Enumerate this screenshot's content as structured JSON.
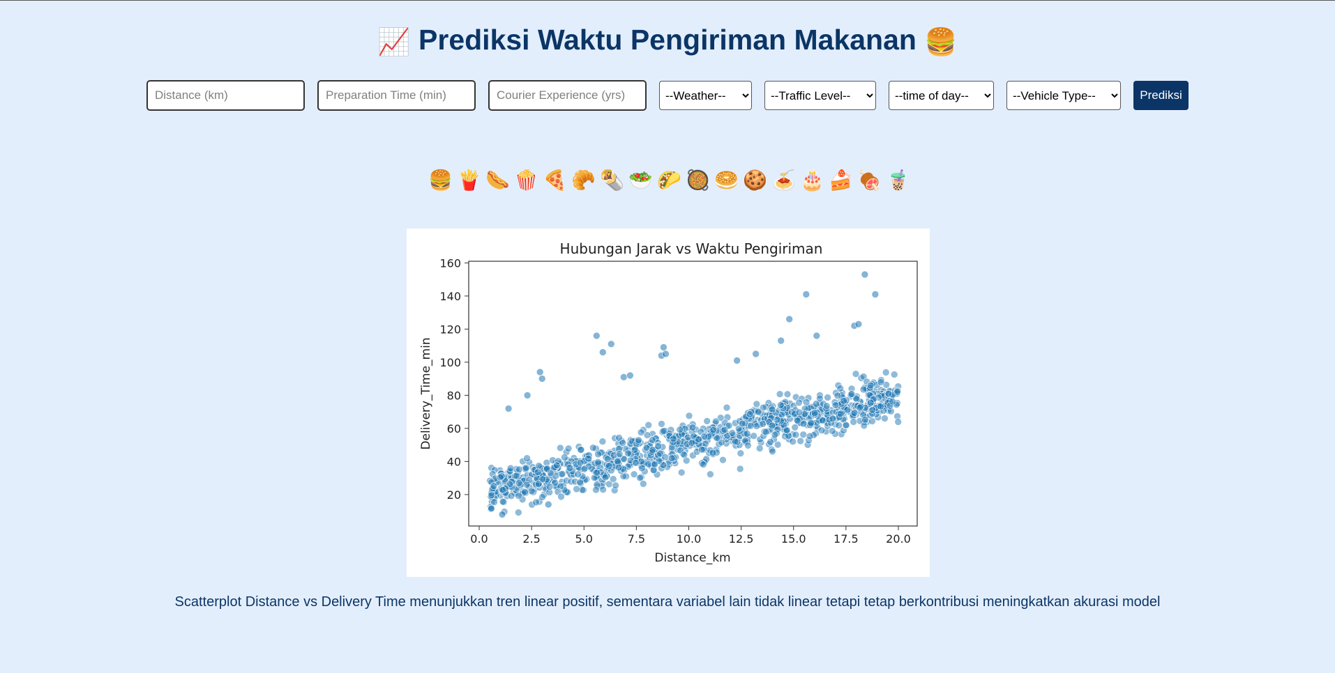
{
  "header": {
    "title": "Prediksi Waktu Pengiriman Makanan",
    "icon_left": "📈",
    "icon_right": "🍔"
  },
  "form": {
    "distance_placeholder": "Distance (km)",
    "prep_placeholder": "Preparation Time (min)",
    "courier_placeholder": "Courier Experience (yrs)",
    "weather_selected": "--Weather--",
    "traffic_selected": "--Traffic Level--",
    "time_selected": "--time of day--",
    "vehicle_selected": "--Vehicle Type--",
    "submit_label": "Prediksi"
  },
  "food_icons": [
    "🍔",
    "🍟",
    "🌭",
    "🍿",
    "🍕",
    "🥐",
    "🌯",
    "🥗",
    "🌮",
    "🥘",
    "🥯",
    "🍪",
    "🍝",
    "🎂",
    "🍰",
    "🍖",
    "🧋"
  ],
  "chart_data": {
    "type": "scatter",
    "title": "Hubungan Jarak vs Waktu Pengiriman",
    "xlabel": "Distance_km",
    "ylabel": "Delivery_Time_min",
    "xlim": [
      -0.5,
      20.9
    ],
    "ylim": [
      1,
      161
    ],
    "xticks": [
      "0.0",
      "2.5",
      "5.0",
      "7.5",
      "10.0",
      "12.5",
      "15.0",
      "17.5",
      "20.0"
    ],
    "yticks": [
      "20",
      "40",
      "60",
      "80",
      "100",
      "120",
      "140",
      "160"
    ],
    "grid": false,
    "point_color": "#1f77b4",
    "approx_points": 1000,
    "trend": {
      "intercept": 22,
      "slope": 2.9
    },
    "outliers": [
      {
        "x": 1.4,
        "y": 72
      },
      {
        "x": 2.3,
        "y": 80
      },
      {
        "x": 2.9,
        "y": 94
      },
      {
        "x": 3.0,
        "y": 90
      },
      {
        "x": 5.6,
        "y": 116
      },
      {
        "x": 5.9,
        "y": 106
      },
      {
        "x": 6.3,
        "y": 111
      },
      {
        "x": 6.9,
        "y": 91
      },
      {
        "x": 7.2,
        "y": 92
      },
      {
        "x": 8.7,
        "y": 104
      },
      {
        "x": 8.8,
        "y": 109
      },
      {
        "x": 8.9,
        "y": 105
      },
      {
        "x": 12.3,
        "y": 101
      },
      {
        "x": 13.2,
        "y": 105
      },
      {
        "x": 14.4,
        "y": 113
      },
      {
        "x": 14.8,
        "y": 126
      },
      {
        "x": 15.6,
        "y": 141
      },
      {
        "x": 16.1,
        "y": 116
      },
      {
        "x": 17.9,
        "y": 122
      },
      {
        "x": 18.1,
        "y": 123
      },
      {
        "x": 18.4,
        "y": 153
      },
      {
        "x": 18.9,
        "y": 141
      },
      {
        "x": 3.3,
        "y": 14
      },
      {
        "x": 1.1,
        "y": 8
      }
    ]
  },
  "caption": "Scatterplot Distance vs Delivery Time menunjukkan tren linear positif, sementara variabel lain tidak linear tetapi tetap berkontribusi meningkatkan akurasi model"
}
